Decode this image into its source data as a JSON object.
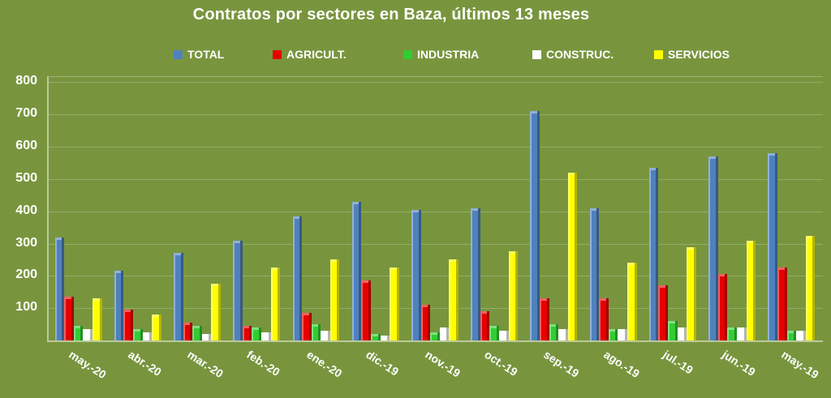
{
  "title": "Contratos por sectores en Baza, últimos 13 meses",
  "colors": {
    "background": "#78953E",
    "text": "#FFFFFF",
    "gridline": "rgba(255,255,255,0.22)",
    "total": "#4F81BD",
    "agricultura": "#E60000",
    "industria": "#33CC33",
    "construccion": "#FFFFFF",
    "servicios": "#FFFF00"
  },
  "chart_data": {
    "type": "bar",
    "title": "Contratos por sectores en Baza, últimos 13 meses",
    "categories": [
      "may.-20",
      "abr.-20",
      "mar.-20",
      "feb.-20",
      "ene.-20",
      "dic.-19",
      "nov.-19",
      "oct.-19",
      "sep.-19",
      "ago.-19",
      "jul.-19",
      "jun.-19",
      "may.-19"
    ],
    "series": [
      {
        "name": "TOTAL",
        "color": "#4F81BD",
        "values": [
          320,
          215,
          270,
          310,
          385,
          430,
          405,
          410,
          710,
          410,
          535,
          570,
          580
        ]
      },
      {
        "name": "AGRICULT.",
        "color": "#E60000",
        "values": [
          135,
          95,
          55,
          45,
          85,
          185,
          110,
          90,
          130,
          130,
          170,
          205,
          225
        ]
      },
      {
        "name": "INDUSTRIA",
        "color": "#33CC33",
        "values": [
          45,
          35,
          45,
          40,
          50,
          20,
          25,
          45,
          50,
          35,
          60,
          40,
          30
        ]
      },
      {
        "name": "CONSTRUC.",
        "color": "#FFFFFF",
        "values": [
          35,
          25,
          20,
          25,
          30,
          15,
          40,
          30,
          35,
          35,
          40,
          40,
          30
        ]
      },
      {
        "name": "SERVICIOS",
        "color": "#FFFF00",
        "values": [
          130,
          80,
          175,
          225,
          250,
          225,
          250,
          275,
          520,
          240,
          290,
          310,
          325
        ]
      }
    ],
    "xlabel": "",
    "ylabel": "",
    "ylim": [
      0,
      800
    ],
    "yticks": [
      100,
      200,
      300,
      400,
      500,
      600,
      700,
      800
    ],
    "grid": true,
    "legend_position": "top"
  }
}
